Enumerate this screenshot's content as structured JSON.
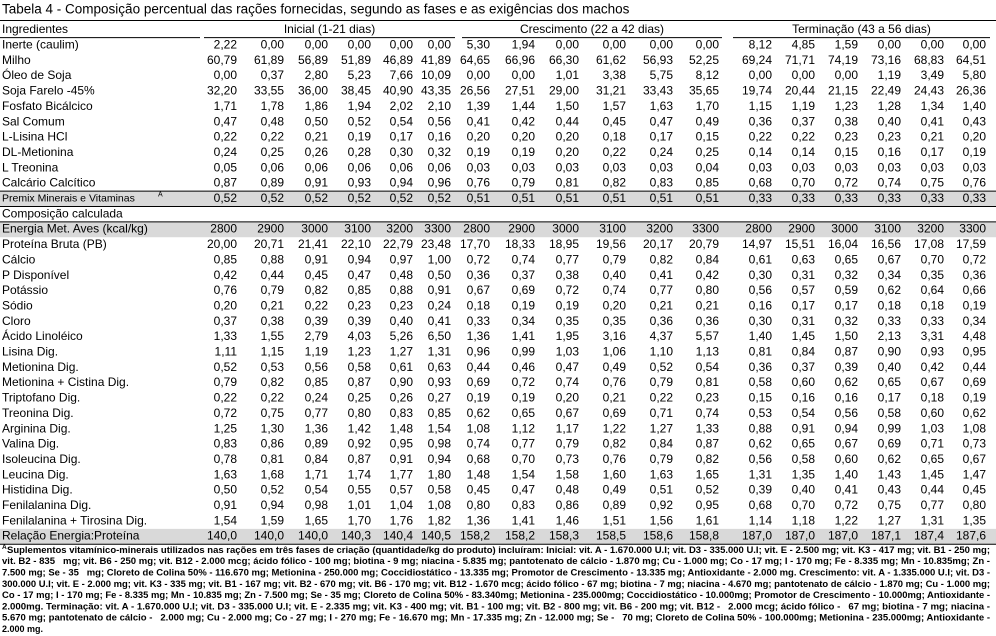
{
  "title": "Tabela 4 - Composição percentual das rações fornecidas, segundo as fases e as exigências dos machos",
  "table": {
    "header": {
      "first": "Ingredientes",
      "groups": [
        "Inicial (1-21 dias)",
        "Crescimento (22 a 42 dias)",
        "Terminação (43 a 56 dias)"
      ]
    },
    "ingredient_rows": [
      [
        "Inerte (caulim)",
        "2,22",
        "0,00",
        "0,00",
        "0,00",
        "0,00",
        "0,00",
        "5,30",
        "1,94",
        "0,00",
        "0,00",
        "0,00",
        "0,00",
        "8,12",
        "4,85",
        "1,59",
        "0,00",
        "0,00",
        "0,00"
      ],
      [
        "Milho",
        "60,79",
        "61,89",
        "56,89",
        "51,89",
        "46,89",
        "41,89",
        "64,65",
        "66,96",
        "66,30",
        "61,62",
        "56,93",
        "52,25",
        "69,24",
        "71,71",
        "74,19",
        "73,16",
        "68,83",
        "64,51"
      ],
      [
        "Óleo de Soja",
        "0,00",
        "0,37",
        "2,80",
        "5,23",
        "7,66",
        "10,09",
        "0,00",
        "0,00",
        "1,01",
        "3,38",
        "5,75",
        "8,12",
        "0,00",
        "0,00",
        "0,00",
        "1,19",
        "3,49",
        "5,80"
      ],
      [
        "Soja Farelo -45%",
        "32,20",
        "33,55",
        "36,00",
        "38,45",
        "40,90",
        "43,35",
        "26,56",
        "27,51",
        "29,00",
        "31,21",
        "33,43",
        "35,65",
        "19,74",
        "20,44",
        "21,15",
        "22,49",
        "24,43",
        "26,36"
      ],
      [
        "Fosfato Bicálcico",
        "1,71",
        "1,78",
        "1,86",
        "1,94",
        "2,02",
        "2,10",
        "1,39",
        "1,44",
        "1,50",
        "1,57",
        "1,63",
        "1,70",
        "1,15",
        "1,19",
        "1,23",
        "1,28",
        "1,34",
        "1,40"
      ],
      [
        "Sal Comum",
        "0,47",
        "0,48",
        "0,50",
        "0,52",
        "0,54",
        "0,56",
        "0,41",
        "0,42",
        "0,44",
        "0,45",
        "0,47",
        "0,49",
        "0,36",
        "0,37",
        "0,38",
        "0,40",
        "0,41",
        "0,43"
      ],
      [
        "L-Lisina HCl",
        "0,22",
        "0,22",
        "0,21",
        "0,19",
        "0,17",
        "0,16",
        "0,20",
        "0,20",
        "0,20",
        "0,18",
        "0,17",
        "0,15",
        "0,22",
        "0,22",
        "0,23",
        "0,23",
        "0,21",
        "0,20"
      ],
      [
        "DL-Metionina",
        "0,24",
        "0,25",
        "0,26",
        "0,28",
        "0,30",
        "0,32",
        "0,19",
        "0,19",
        "0,20",
        "0,22",
        "0,24",
        "0,25",
        "0,14",
        "0,14",
        "0,15",
        "0,16",
        "0,17",
        "0,19"
      ],
      [
        "L Treonina",
        "0,05",
        "0,06",
        "0,06",
        "0,06",
        "0,06",
        "0,06",
        "0,03",
        "0,03",
        "0,03",
        "0,03",
        "0,03",
        "0,04",
        "0,03",
        "0,03",
        "0,03",
        "0,03",
        "0,03",
        "0,03"
      ],
      [
        "Calcário Calcítico",
        "0,87",
        "0,89",
        "0,91",
        "0,93",
        "0,94",
        "0,96",
        "0,76",
        "0,79",
        "0,81",
        "0,82",
        "0,83",
        "0,85",
        "0,68",
        "0,70",
        "0,72",
        "0,74",
        "0,75",
        "0,76"
      ],
      [
        "Premix Minerais e Vitaminas",
        "0,52",
        "0,52",
        "0,52",
        "0,52",
        "0,52",
        "0,52",
        "0,51",
        "0,51",
        "0,51",
        "0,51",
        "0,51",
        "0,51",
        "0,33",
        "0,33",
        "0,33",
        "0,33",
        "0,33",
        "0,33"
      ]
    ],
    "section_label": "Composição calculada",
    "calculated_rows": [
      [
        "Energia Met. Aves (kcal/kg)",
        "2800",
        "2900",
        "3000",
        "3100",
        "3200",
        "3300",
        "2800",
        "2900",
        "3000",
        "3100",
        "3200",
        "3300",
        "2800",
        "2900",
        "3000",
        "3100",
        "3200",
        "3300"
      ],
      [
        "Proteína Bruta (PB)",
        "20,00",
        "20,71",
        "21,41",
        "22,10",
        "22,79",
        "23,48",
        "17,70",
        "18,33",
        "18,95",
        "19,56",
        "20,17",
        "20,79",
        "14,97",
        "15,51",
        "16,04",
        "16,56",
        "17,08",
        "17,59"
      ],
      [
        "Cálcio",
        "0,85",
        "0,88",
        "0,91",
        "0,94",
        "0,97",
        "1,00",
        "0,72",
        "0,74",
        "0,77",
        "0,79",
        "0,82",
        "0,84",
        "0,61",
        "0,63",
        "0,65",
        "0,67",
        "0,70",
        "0,72"
      ],
      [
        "P Disponível",
        "0,42",
        "0,44",
        "0,45",
        "0,47",
        "0,48",
        "0,50",
        "0,36",
        "0,37",
        "0,38",
        "0,40",
        "0,41",
        "0,42",
        "0,30",
        "0,31",
        "0,32",
        "0,34",
        "0,35",
        "0,36"
      ],
      [
        "Potássio",
        "0,76",
        "0,79",
        "0,82",
        "0,85",
        "0,88",
        "0,91",
        "0,67",
        "0,69",
        "0,72",
        "0,74",
        "0,77",
        "0,80",
        "0,56",
        "0,57",
        "0,59",
        "0,62",
        "0,64",
        "0,66"
      ],
      [
        "Sódio",
        "0,20",
        "0,21",
        "0,22",
        "0,23",
        "0,23",
        "0,24",
        "0,18",
        "0,19",
        "0,19",
        "0,20",
        "0,21",
        "0,21",
        "0,16",
        "0,17",
        "0,17",
        "0,18",
        "0,18",
        "0,19"
      ],
      [
        "Cloro",
        "0,37",
        "0,38",
        "0,39",
        "0,39",
        "0,40",
        "0,41",
        "0,33",
        "0,34",
        "0,35",
        "0,35",
        "0,36",
        "0,36",
        "0,30",
        "0,31",
        "0,32",
        "0,33",
        "0,33",
        "0,34"
      ],
      [
        "Ácido Linoléico",
        "1,33",
        "1,55",
        "2,79",
        "4,03",
        "5,26",
        "6,50",
        "1,36",
        "1,41",
        "1,95",
        "3,16",
        "4,37",
        "5,57",
        "1,40",
        "1,45",
        "1,50",
        "2,13",
        "3,31",
        "4,48"
      ],
      [
        "Lisina Dig.",
        "1,11",
        "1,15",
        "1,19",
        "1,23",
        "1,27",
        "1,31",
        "0,96",
        "0,99",
        "1,03",
        "1,06",
        "1,10",
        "1,13",
        "0,81",
        "0,84",
        "0,87",
        "0,90",
        "0,93",
        "0,95"
      ],
      [
        "Metionina Dig.",
        "0,52",
        "0,53",
        "0,56",
        "0,58",
        "0,61",
        "0,63",
        "0,44",
        "0,46",
        "0,47",
        "0,49",
        "0,52",
        "0,54",
        "0,36",
        "0,37",
        "0,39",
        "0,40",
        "0,42",
        "0,44"
      ],
      [
        "Metionina + Cistina Dig.",
        "0,79",
        "0,82",
        "0,85",
        "0,87",
        "0,90",
        "0,93",
        "0,69",
        "0,72",
        "0,74",
        "0,76",
        "0,79",
        "0,81",
        "0,58",
        "0,60",
        "0,62",
        "0,65",
        "0,67",
        "0,69"
      ],
      [
        "Triptofano Dig.",
        "0,22",
        "0,22",
        "0,24",
        "0,25",
        "0,26",
        "0,27",
        "0,19",
        "0,19",
        "0,20",
        "0,21",
        "0,22",
        "0,23",
        "0,15",
        "0,16",
        "0,16",
        "0,17",
        "0,18",
        "0,19"
      ],
      [
        "Treonina Dig.",
        "0,72",
        "0,75",
        "0,77",
        "0,80",
        "0,83",
        "0,85",
        "0,62",
        "0,65",
        "0,67",
        "0,69",
        "0,71",
        "0,74",
        "0,53",
        "0,54",
        "0,56",
        "0,58",
        "0,60",
        "0,62"
      ],
      [
        "Arginina Dig.",
        "1,25",
        "1,30",
        "1,36",
        "1,42",
        "1,48",
        "1,54",
        "1,08",
        "1,12",
        "1,17",
        "1,22",
        "1,27",
        "1,33",
        "0,88",
        "0,91",
        "0,94",
        "0,99",
        "1,03",
        "1,08"
      ],
      [
        "Valina Dig.",
        "0,83",
        "0,86",
        "0,89",
        "0,92",
        "0,95",
        "0,98",
        "0,74",
        "0,77",
        "0,79",
        "0,82",
        "0,84",
        "0,87",
        "0,62",
        "0,65",
        "0,67",
        "0,69",
        "0,71",
        "0,73"
      ],
      [
        "Isoleucina Dig.",
        "0,78",
        "0,81",
        "0,84",
        "0,87",
        "0,91",
        "0,94",
        "0,68",
        "0,70",
        "0,73",
        "0,76",
        "0,79",
        "0,82",
        "0,56",
        "0,58",
        "0,60",
        "0,62",
        "0,65",
        "0,67"
      ],
      [
        "Leucina Dig.",
        "1,63",
        "1,68",
        "1,71",
        "1,74",
        "1,77",
        "1,80",
        "1,48",
        "1,54",
        "1,58",
        "1,60",
        "1,63",
        "1,65",
        "1,31",
        "1,35",
        "1,40",
        "1,43",
        "1,45",
        "1,47"
      ],
      [
        "Histidina Dig.",
        "0,50",
        "0,52",
        "0,54",
        "0,55",
        "0,57",
        "0,58",
        "0,45",
        "0,47",
        "0,48",
        "0,49",
        "0,51",
        "0,52",
        "0,39",
        "0,40",
        "0,41",
        "0,43",
        "0,44",
        "0,45"
      ],
      [
        "Fenilalanina Dig.",
        "0,91",
        "0,94",
        "0,98",
        "1,01",
        "1,04",
        "1,08",
        "0,80",
        "0,83",
        "0,86",
        "0,89",
        "0,92",
        "0,95",
        "0,68",
        "0,70",
        "0,72",
        "0,75",
        "0,77",
        "0,80"
      ],
      [
        "Fenilalanina + Tirosina Dig.",
        "1,54",
        "1,59",
        "1,65",
        "1,70",
        "1,76",
        "1,82",
        "1,36",
        "1,41",
        "1,46",
        "1,51",
        "1,56",
        "1,61",
        "1,14",
        "1,18",
        "1,22",
        "1,27",
        "1,31",
        "1,35"
      ],
      [
        "Relação Energia:Proteína",
        "140,0",
        "140,0",
        "140,0",
        "140,3",
        "140,4",
        "140,5",
        "158,2",
        "158,2",
        "158,3",
        "158,5",
        "158,6",
        "158,8",
        "187,0",
        "187,0",
        "187,0",
        "187,1",
        "187,4",
        "187,6"
      ]
    ]
  },
  "footnote": {
    "marker": "A",
    "lines": [
      "Suplementos vitamínico-minerais utilizados nas rações em três fases de criação (quantidade/kg do produto) incluíram: Inicial: vit. A - 1.670.000 U.I; vit. D3 - 335.000 U.I; vit. E - 2.500 mg; vit. K3 - 417 mg; vit. B1 - 250 mg;",
      "vit. B2 - 835   mg; vit. B6 - 250 mg; vit. B12 - 2.000 mcg; ácido fólico - 100 mg; biotina - 9 mg; niacina - 5.835 mg; pantotenato de cálcio - 1.870 mg; Cu - 1.000 mg; Co - 17 mg; I - 170 mg; Fe - 8.335 mg; Mn - 10.835mg; Zn -",
      "7.500 mg; Se - 35   mg; Cloreto de Colina 50% - 116.670 mg; Metionina - 250.000 mg; Coccidiostático - 13.335 mg; Promotor de Crescimento - 13.335 mg; Antioxidante - 2.000 mg. Crescimento: vit. A - 1.335.000 U.I; vit. D3 -",
      "300.000 U.I; vit. E - 2.000 mg; vit. K3 - 335 mg; vit. B1 - 167 mg; vit. B2 - 670 mg; vit. B6 - 170 mg; vit. B12 - 1.670 mcg; ácido fólico - 67 mg; biotina - 7 mg; niacina - 4.670 mg; pantotenato de cálcio - 1.870 mg; Cu - 1.000 mg;",
      "Co - 17 mg; I - 170 mg; Fe - 8.335 mg; Mn - 10.835 mg; Zn - 7.500 mg; Se - 35 mg; Cloreto de Colina 50% - 83.340mg; Metionina - 235.000mg; Coccidiostático - 10.000mg; Promotor de Crescimento - 10.000mg; Antioxidante -",
      "2.000mg. Terminação: vit. A - 1.670.000 U.I; vit. D3 - 335.000 U.I; vit. E - 2.335 mg; vit. K3 - 400 mg; vit. B1 - 100 mg; vit. B2 - 800 mg; vit. B6 - 200 mg; vit. B12 -   2.000 mcg; ácido fólico -   67 mg; biotina - 7 mg; niacina -",
      "5.670 mg; pantotenato de cálcio -   2.000 mg; Cu - 2.000 mg; Co - 27 mg; I - 270 mg; Fe - 16.670 mg; Mn - 17.335 mg; Zn - 12.000 mg; Se -   70 mg; Cloreto de Colina 50% - 100.000mg; Metionina - 235.000mg; Antioxidante -",
      "2.000 mg."
    ]
  }
}
